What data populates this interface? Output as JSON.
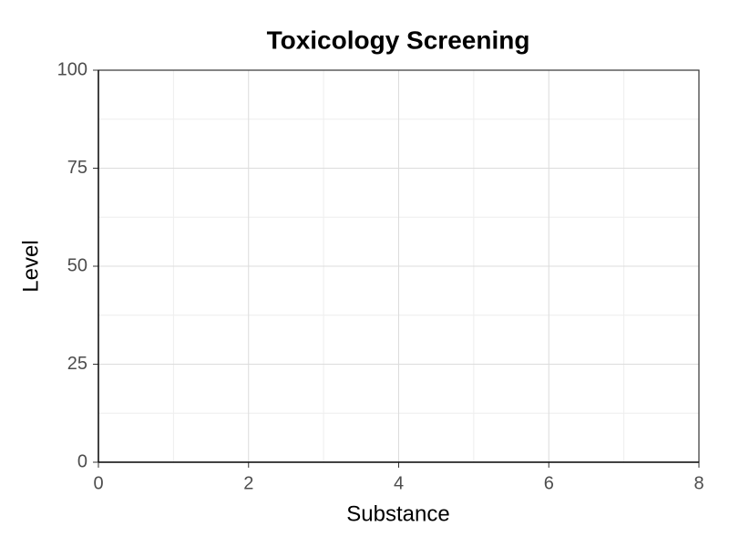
{
  "chart_data": {
    "type": "scatter",
    "title": "Toxicology Screening",
    "xlabel": "Substance",
    "ylabel": "Level",
    "xlim": [
      0,
      8
    ],
    "ylim": [
      0,
      100
    ],
    "xticks": [
      0,
      2,
      4,
      6,
      8
    ],
    "yticks": [
      0,
      25,
      50,
      75,
      100
    ],
    "grid": true
  }
}
